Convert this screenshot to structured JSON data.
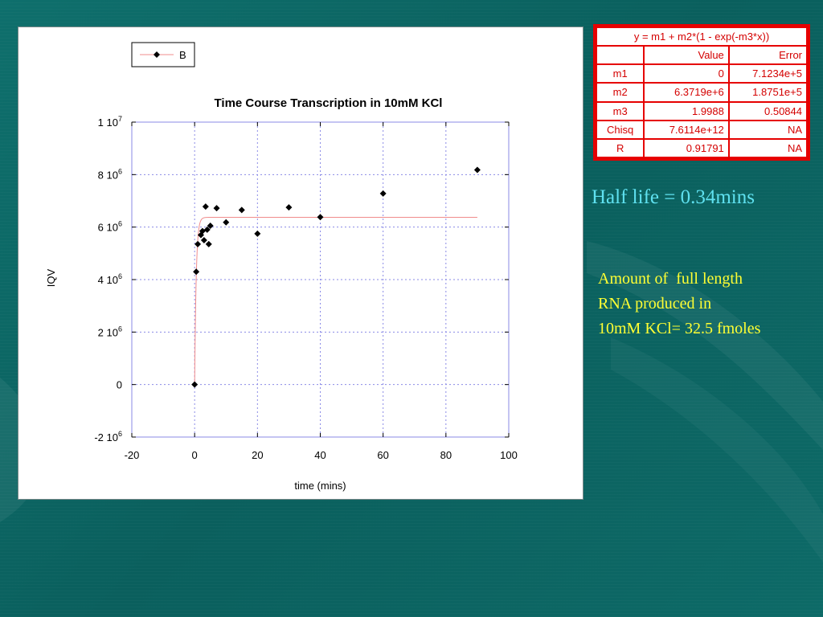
{
  "chart_data": {
    "type": "scatter",
    "title": "Time Course Transcription in 10mM KCl",
    "xlabel": "time (mins)",
    "ylabel": "IQV",
    "xlim": [
      -20,
      100
    ],
    "ylim": [
      -2000000,
      10000000
    ],
    "x_ticks": [
      "-20",
      "0",
      "20",
      "40",
      "60",
      "80",
      "100"
    ],
    "y_ticks": [
      {
        "value": -2000000,
        "mantissa": "-2 10",
        "exp": "6"
      },
      {
        "value": 0,
        "mantissa": "0",
        "exp": ""
      },
      {
        "value": 2000000,
        "mantissa": "2 10",
        "exp": "6"
      },
      {
        "value": 4000000,
        "mantissa": "4 10",
        "exp": "6"
      },
      {
        "value": 6000000,
        "mantissa": "6 10",
        "exp": "6"
      },
      {
        "value": 8000000,
        "mantissa": "8 10",
        "exp": "6"
      },
      {
        "value": 10000000,
        "mantissa": "1 10",
        "exp": "7"
      }
    ],
    "grid": true,
    "legend": {
      "position": "top-left",
      "entries": [
        "B"
      ]
    },
    "series": [
      {
        "name": "B",
        "marker": "diamond",
        "color": "#000000",
        "fit_color": "#f08c8c",
        "points": [
          [
            0,
            0
          ],
          [
            0.5,
            4300000
          ],
          [
            1,
            5350000
          ],
          [
            2,
            5700000
          ],
          [
            2.5,
            5850000
          ],
          [
            3,
            5500000
          ],
          [
            3.5,
            6780000
          ],
          [
            4,
            5900000
          ],
          [
            4.5,
            5350000
          ],
          [
            5,
            6050000
          ],
          [
            7,
            6720000
          ],
          [
            10,
            6180000
          ],
          [
            15,
            6650000
          ],
          [
            20,
            5750000
          ],
          [
            30,
            6750000
          ],
          [
            40,
            6380000
          ],
          [
            60,
            7280000
          ],
          [
            90,
            8180000
          ]
        ]
      }
    ],
    "fit": {
      "equation": "y = m1 + m2*(1 - exp(-m3*x))",
      "m1": 0,
      "m2": 6371900,
      "m3": 1.9988,
      "x_range": [
        0,
        90
      ]
    }
  },
  "fit_table": {
    "equation": "y = m1 + m2*(1 - exp(-m3*x))",
    "headers": [
      "",
      "Value",
      "Error"
    ],
    "rows": [
      {
        "name": "m1",
        "value": "0",
        "error": "7.1234e+5"
      },
      {
        "name": "m2",
        "value": "6.3719e+6",
        "error": "1.8751e+5"
      },
      {
        "name": "m3",
        "value": "1.9988",
        "error": "0.50844"
      },
      {
        "name": "Chisq",
        "value": "7.6114e+12",
        "error": "NA"
      },
      {
        "name": "R",
        "value": "0.91791",
        "error": "NA"
      }
    ]
  },
  "notes": {
    "half_life": "Half life = 0.34mins",
    "amount_lines": [
      "Amount of  full length",
      "RNA produced in",
      "10mM KCl= 32.5 fmoles"
    ]
  },
  "colors": {
    "background": "#0b6462",
    "table_red": "#e60000",
    "half_life_cyan": "#5fe1f0",
    "amount_yellow": "#ffff33",
    "grid_blue": "#8a8ae6"
  }
}
